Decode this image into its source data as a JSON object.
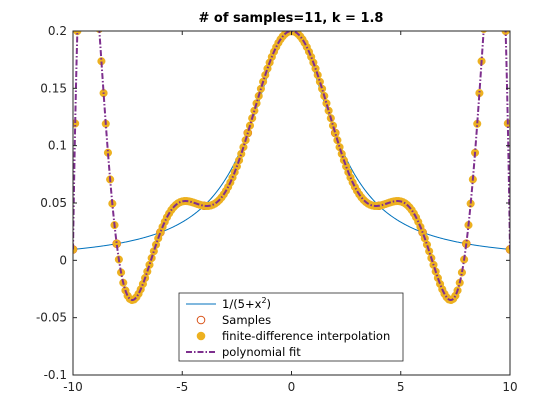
{
  "chart_data": {
    "type": "line",
    "title": "# of samples=11, k = 1.8",
    "xlabel": "",
    "ylabel": "",
    "xlim": [
      -10,
      10
    ],
    "ylim": [
      -0.1,
      0.2
    ],
    "grid": false,
    "legend_position": "bottom-center",
    "x_ticks": [
      -10,
      -5,
      0,
      5,
      10
    ],
    "x_tick_labels": [
      "-10",
      "-5",
      "0",
      "5",
      "10"
    ],
    "y_ticks": [
      -0.1,
      -0.05,
      0,
      0.05,
      0.1,
      0.15,
      0.2
    ],
    "y_tick_labels": [
      "-0.1",
      "-0.05",
      "0",
      "0.05",
      "0.1",
      "0.15",
      "0.2"
    ],
    "series": [
      {
        "name": "1/(5+x²)",
        "legend_base": "1/(5+x",
        "legend_sup": "2",
        "legend_tail": ")",
        "kind": "line",
        "color": "#0072BD",
        "function": "runge",
        "x_range": [
          -10,
          10
        ]
      },
      {
        "name": "Samples",
        "kind": "marker-open",
        "color": "#D95319",
        "x": [
          -10,
          -8,
          -6,
          -4,
          -2,
          0,
          2,
          4,
          6,
          8,
          10
        ],
        "y": [
          0.0095,
          0.0145,
          0.0244,
          0.0476,
          0.1111,
          0.2,
          0.1111,
          0.0476,
          0.0244,
          0.0145,
          0.0095
        ]
      },
      {
        "name": "finite-difference interpolation",
        "kind": "marker-filled",
        "color": "#EDB120",
        "function": "interpolant",
        "x_range": [
          -10,
          10
        ],
        "step": 0.1
      },
      {
        "name": "polynomial fit",
        "kind": "dashdot-line",
        "color": "#7E2F8E",
        "function": "interpolant",
        "x_range": [
          -10,
          10
        ]
      }
    ]
  }
}
